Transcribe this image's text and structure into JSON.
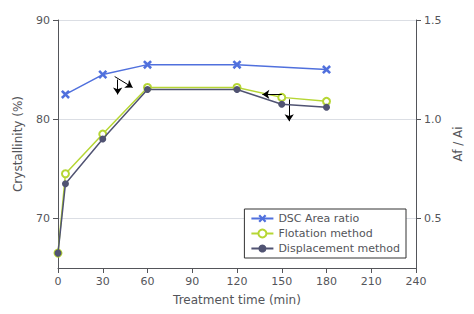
{
  "chart_data": {
    "type": "line",
    "xlabel": "Treatment time (min)",
    "ylabel": "Crystallinity (%)",
    "y2label": "Af / Ai",
    "xlim": [
      0,
      240
    ],
    "xticks": [
      0,
      30,
      60,
      90,
      120,
      150,
      180,
      210,
      240
    ],
    "ylim": [
      65,
      90
    ],
    "yticks": [
      70,
      80,
      90
    ],
    "y2lim": [
      0.25,
      1.5
    ],
    "y2ticks": [
      0.5,
      {
        "value": 1.0,
        "label": "1.0"
      },
      1.5
    ],
    "grid": true,
    "legend": "lower right",
    "series": [
      {
        "name": "DSC Area ratio",
        "marker": "x",
        "line_style": "solid",
        "x": [
          5,
          30,
          60,
          120,
          180
        ],
        "values": [
          82.5,
          84.5,
          85.5,
          85.5,
          85.0
        ]
      },
      {
        "name": "Flotation method",
        "marker": "circle_open",
        "line_style": "solid",
        "x": [
          0,
          5,
          30,
          60,
          120,
          150,
          180
        ],
        "values": [
          66.5,
          74.5,
          78.5,
          83.2,
          83.2,
          82.2,
          81.8
        ]
      },
      {
        "name": "Displacement method",
        "marker": "circle",
        "line_style": "solid",
        "x": [
          0,
          5,
          30,
          60,
          120,
          150,
          180
        ],
        "values": [
          66.5,
          73.5,
          78.0,
          83.0,
          83.0,
          81.5,
          81.2
        ]
      }
    ],
    "arrows": [
      {
        "from": [
          38,
          84.3
        ],
        "to": [
          50,
          83.2
        ]
      },
      {
        "from": [
          40,
          84.0
        ],
        "to": [
          40,
          82.5
        ]
      },
      {
        "from": [
          150,
          82.5
        ],
        "to": [
          137,
          82.5
        ]
      },
      {
        "from": [
          155,
          82.0
        ],
        "to": [
          155,
          79.8
        ]
      }
    ]
  }
}
